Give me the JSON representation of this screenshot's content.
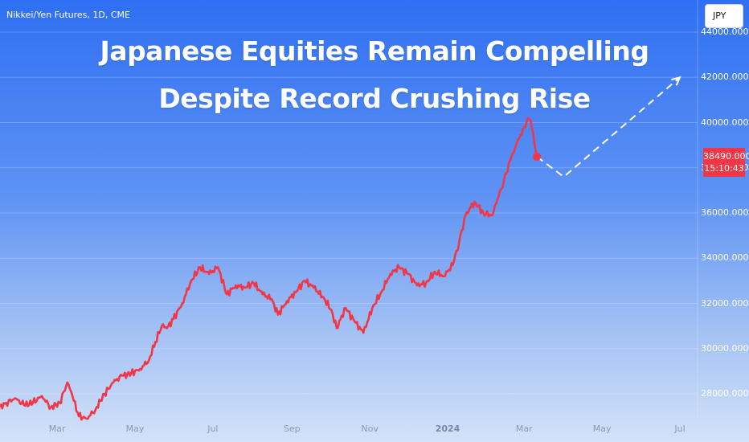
{
  "symbol_label": "Nikkei/Yen Futures, 1D, CME",
  "currency_button": "JPY",
  "title_line1": "Japanese Equities Remain Compelling",
  "title_line2": "Despite Record Crushing Rise",
  "last_price": "38490.000",
  "countdown": "15:10:43",
  "colors": {
    "series": "#f23645",
    "projection": "#ffffff",
    "price_tag": "#f23645"
  },
  "chart_data": {
    "type": "line",
    "title": "Japanese Equities Remain Compelling Despite Record Crushing Rise",
    "ylim": [
      26500,
      45000
    ],
    "y_ticks": [
      {
        "value": 44000,
        "label": "44000.000"
      },
      {
        "value": 42000,
        "label": "42000.000"
      },
      {
        "value": 40000,
        "label": "40000.000"
      },
      {
        "value": 38000,
        "label": "38000.000"
      },
      {
        "value": 36000,
        "label": "36000.000"
      },
      {
        "value": 34000,
        "label": "34000.000"
      },
      {
        "value": 32000,
        "label": "32000.000"
      },
      {
        "value": 30000,
        "label": "30000.000"
      },
      {
        "value": 28000,
        "label": "28000.000"
      }
    ],
    "x_ticks": [
      {
        "date": "2023-03-01",
        "label": "Mar"
      },
      {
        "date": "2023-05-01",
        "label": "May"
      },
      {
        "date": "2023-07-01",
        "label": "Jul"
      },
      {
        "date": "2023-09-01",
        "label": "Sep"
      },
      {
        "date": "2023-11-01",
        "label": "Nov"
      },
      {
        "date": "2024-01-01",
        "label": "2024"
      },
      {
        "date": "2024-03-01",
        "label": "Mar"
      },
      {
        "date": "2024-05-01",
        "label": "May"
      },
      {
        "date": "2024-07-01",
        "label": "Jul"
      }
    ],
    "series": [
      {
        "points": [
          [
            "2023-01-12",
            27300
          ],
          [
            "2023-01-20",
            27600
          ],
          [
            "2023-01-27",
            27800
          ],
          [
            "2023-02-03",
            27500
          ],
          [
            "2023-02-10",
            27600
          ],
          [
            "2023-02-17",
            27900
          ],
          [
            "2023-02-24",
            27400
          ],
          [
            "2023-03-03",
            27600
          ],
          [
            "2023-03-09",
            28500
          ],
          [
            "2023-03-13",
            27900
          ],
          [
            "2023-03-18",
            27000
          ],
          [
            "2023-03-24",
            26900
          ],
          [
            "2023-03-31",
            27300
          ],
          [
            "2023-04-07",
            28000
          ],
          [
            "2023-04-14",
            28500
          ],
          [
            "2023-04-21",
            28800
          ],
          [
            "2023-04-28",
            28900
          ],
          [
            "2023-05-05",
            29100
          ],
          [
            "2023-05-12",
            29500
          ],
          [
            "2023-05-17",
            30300
          ],
          [
            "2023-05-22",
            31000
          ],
          [
            "2023-05-26",
            30900
          ],
          [
            "2023-05-31",
            31300
          ],
          [
            "2023-06-07",
            32000
          ],
          [
            "2023-06-14",
            33000
          ],
          [
            "2023-06-21",
            33600
          ],
          [
            "2023-06-28",
            33300
          ],
          [
            "2023-07-05",
            33600
          ],
          [
            "2023-07-12",
            32400
          ],
          [
            "2023-07-19",
            32800
          ],
          [
            "2023-07-26",
            32700
          ],
          [
            "2023-08-02",
            32900
          ],
          [
            "2023-08-09",
            32400
          ],
          [
            "2023-08-16",
            32200
          ],
          [
            "2023-08-21",
            31500
          ],
          [
            "2023-08-28",
            32100
          ],
          [
            "2023-09-04",
            32500
          ],
          [
            "2023-09-11",
            33000
          ],
          [
            "2023-09-18",
            32700
          ],
          [
            "2023-09-25",
            32300
          ],
          [
            "2023-10-02",
            31700
          ],
          [
            "2023-10-06",
            30900
          ],
          [
            "2023-10-13",
            31800
          ],
          [
            "2023-10-20",
            31200
          ],
          [
            "2023-10-27",
            30700
          ],
          [
            "2023-11-03",
            31800
          ],
          [
            "2023-11-10",
            32500
          ],
          [
            "2023-11-17",
            33300
          ],
          [
            "2023-11-24",
            33600
          ],
          [
            "2023-12-01",
            33300
          ],
          [
            "2023-12-08",
            32800
          ],
          [
            "2023-12-15",
            32900
          ],
          [
            "2023-12-22",
            33400
          ],
          [
            "2023-12-29",
            33200
          ],
          [
            "2024-01-05",
            33700
          ],
          [
            "2024-01-10",
            34700
          ],
          [
            "2024-01-15",
            35900
          ],
          [
            "2024-01-22",
            36500
          ],
          [
            "2024-01-29",
            36000
          ],
          [
            "2024-02-05",
            35900
          ],
          [
            "2024-02-09",
            36600
          ],
          [
            "2024-02-14",
            37400
          ],
          [
            "2024-02-20",
            38500
          ],
          [
            "2024-02-26",
            39300
          ],
          [
            "2024-03-01",
            39800
          ],
          [
            "2024-03-04",
            40200
          ],
          [
            "2024-03-06",
            40100
          ],
          [
            "2024-03-11",
            38490
          ]
        ]
      }
    ],
    "projection": [
      [
        "2024-03-11",
        38490
      ],
      [
        "2024-04-01",
        37600
      ],
      [
        "2024-07-01",
        42000
      ]
    ],
    "last_point": [
      "2024-03-11",
      38490
    ]
  }
}
